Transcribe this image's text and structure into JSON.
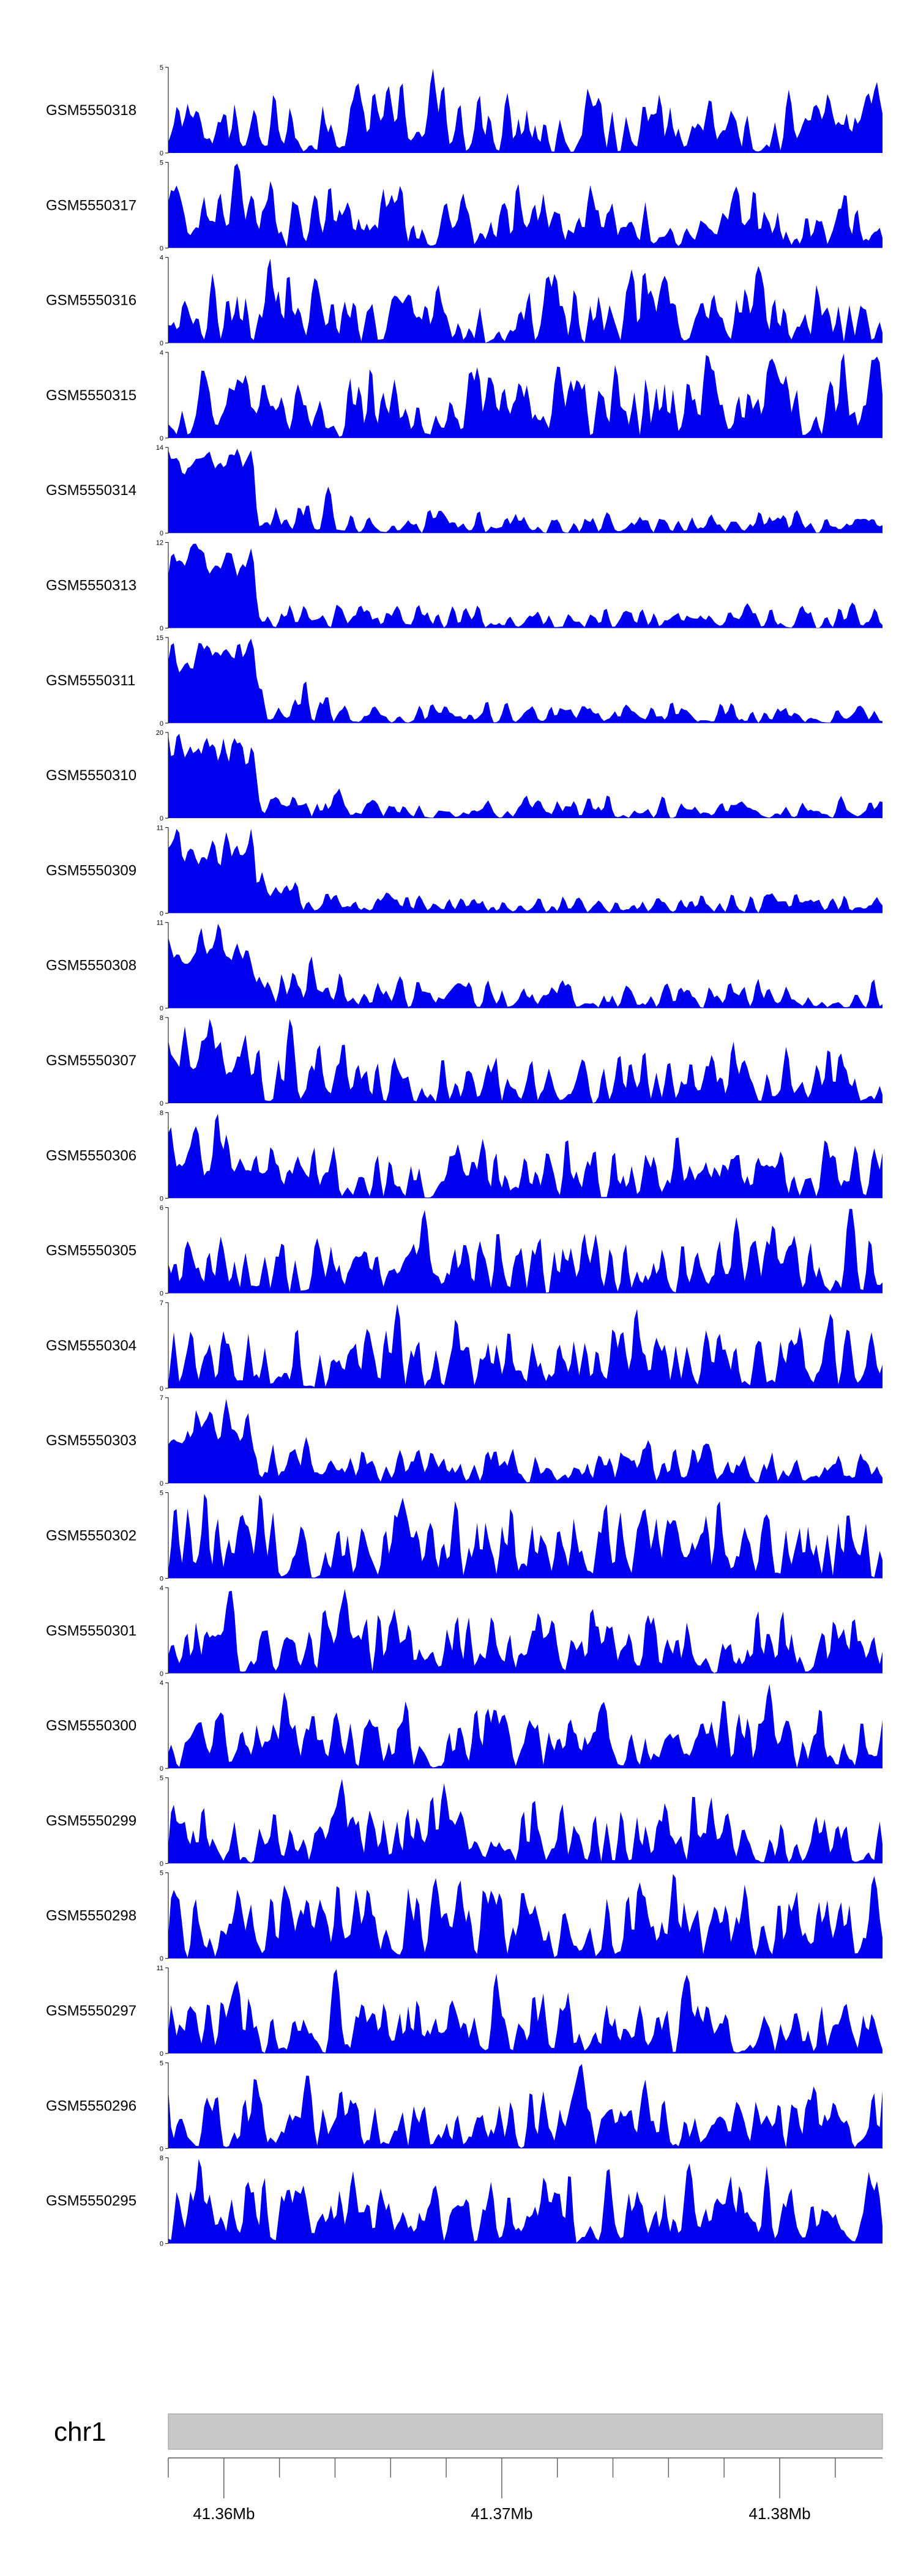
{
  "chart_data": {
    "type": "area",
    "title": "",
    "xlabel": "",
    "ylabel": "",
    "colors": {
      "signal": "#0000ee",
      "chrom_bar": "#c8c8c8",
      "axis": "#000000"
    },
    "tracks": [
      {
        "name": "GSM5550318",
        "ymax": "5",
        "ymin": "0",
        "seed": 318,
        "max_level": 5,
        "left_bias": 0.0
      },
      {
        "name": "GSM5550317",
        "ymax": "5",
        "ymin": "0",
        "seed": 317,
        "max_level": 5,
        "left_bias": 0.1
      },
      {
        "name": "GSM5550316",
        "ymax": "4",
        "ymin": "0",
        "seed": 316,
        "max_level": 4,
        "left_bias": 0.0
      },
      {
        "name": "GSM5550315",
        "ymax": "4",
        "ymin": "0",
        "seed": 315,
        "max_level": 4,
        "left_bias": 0.0
      },
      {
        "name": "GSM5550314",
        "ymax": "14",
        "ymin": "0",
        "seed": 314,
        "max_level": 14,
        "left_bias": 1.0
      },
      {
        "name": "GSM5550313",
        "ymax": "12",
        "ymin": "0",
        "seed": 313,
        "max_level": 12,
        "left_bias": 1.0
      },
      {
        "name": "GSM5550311",
        "ymax": "15",
        "ymin": "0",
        "seed": 311,
        "max_level": 15,
        "left_bias": 1.0
      },
      {
        "name": "GSM5550310",
        "ymax": "20",
        "ymin": "0",
        "seed": 310,
        "max_level": 20,
        "left_bias": 1.0
      },
      {
        "name": "GSM5550309",
        "ymax": "11",
        "ymin": "0",
        "seed": 309,
        "max_level": 11,
        "left_bias": 1.0
      },
      {
        "name": "GSM5550308",
        "ymax": "11",
        "ymin": "0",
        "seed": 308,
        "max_level": 11,
        "left_bias": 0.8
      },
      {
        "name": "GSM5550307",
        "ymax": "8",
        "ymin": "0",
        "seed": 307,
        "max_level": 8,
        "left_bias": 0.5
      },
      {
        "name": "GSM5550306",
        "ymax": "8",
        "ymin": "0",
        "seed": 306,
        "max_level": 8,
        "left_bias": 0.4
      },
      {
        "name": "GSM5550305",
        "ymax": "6",
        "ymin": "0",
        "seed": 305,
        "max_level": 6,
        "left_bias": 0.0
      },
      {
        "name": "GSM5550304",
        "ymax": "7",
        "ymin": "0",
        "seed": 304,
        "max_level": 7,
        "left_bias": 0.1
      },
      {
        "name": "GSM5550303",
        "ymax": "7",
        "ymin": "0",
        "seed": 303,
        "max_level": 7,
        "left_bias": 0.7
      },
      {
        "name": "GSM5550302",
        "ymax": "5",
        "ymin": "0",
        "seed": 302,
        "max_level": 5,
        "left_bias": 0.0
      },
      {
        "name": "GSM5550301",
        "ymax": "4",
        "ymin": "0",
        "seed": 301,
        "max_level": 4,
        "left_bias": 0.0
      },
      {
        "name": "GSM5550300",
        "ymax": "4",
        "ymin": "0",
        "seed": 300,
        "max_level": 4,
        "left_bias": 0.0
      },
      {
        "name": "GSM5550299",
        "ymax": "5",
        "ymin": "0",
        "seed": 299,
        "max_level": 5,
        "left_bias": 0.0
      },
      {
        "name": "GSM5550298",
        "ymax": "5",
        "ymin": "0",
        "seed": 298,
        "max_level": 5,
        "left_bias": 0.0
      },
      {
        "name": "GSM5550297",
        "ymax": "11",
        "ymin": "0",
        "seed": 297,
        "max_level": 11,
        "left_bias": 0.0
      },
      {
        "name": "GSM5550296",
        "ymax": "5",
        "ymin": "0",
        "seed": 296,
        "max_level": 5,
        "left_bias": 0.0
      },
      {
        "name": "GSM5550295",
        "ymax": "8",
        "ymin": "0",
        "seed": 295,
        "max_level": 8,
        "left_bias": 0.0
      }
    ],
    "genome_axis": {
      "chromosome": "chr1",
      "range_mb": [
        41.358,
        41.3837
      ],
      "major_ticks": [
        {
          "value": 41.36,
          "label": "41.36Mb"
        },
        {
          "value": 41.37,
          "label": "41.37Mb"
        },
        {
          "value": 41.38,
          "label": "41.38Mb"
        }
      ],
      "minor_tick_step_mb": 0.002
    }
  }
}
